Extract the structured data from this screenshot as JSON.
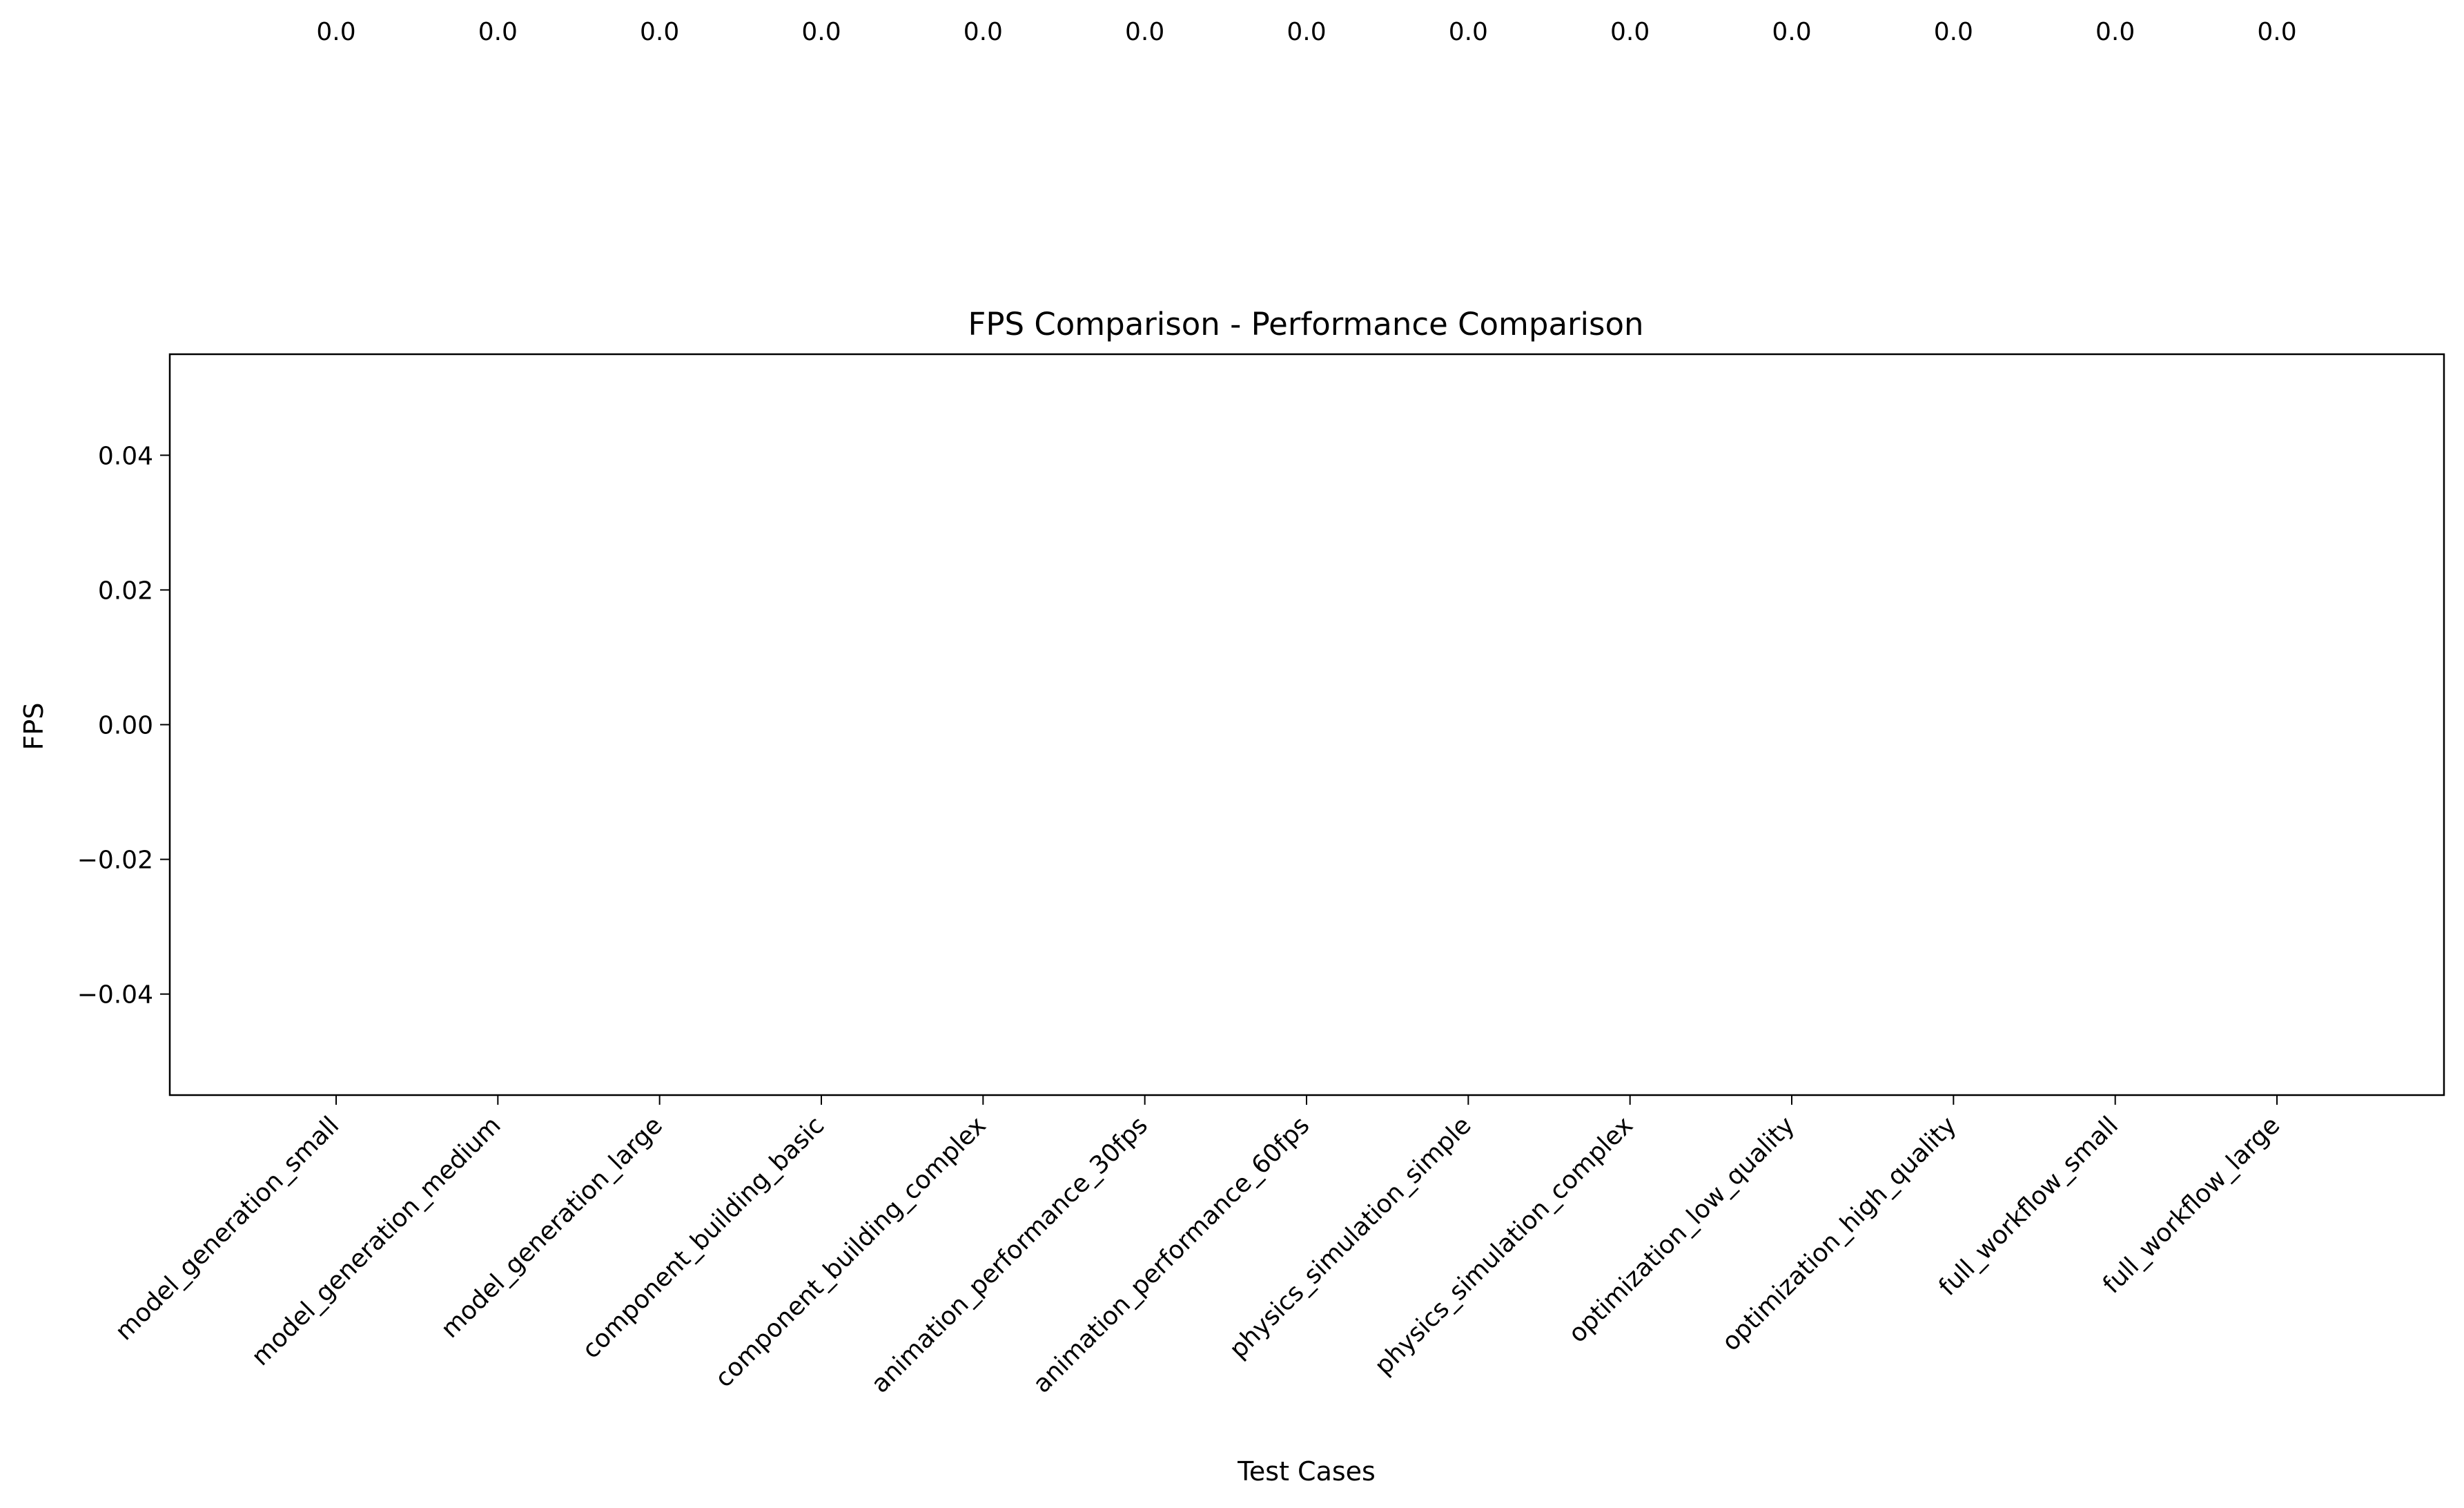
{
  "chart_data": {
    "type": "bar",
    "title": "FPS Comparison - Performance Comparison",
    "xlabel": "Test Cases",
    "ylabel": "FPS",
    "categories": [
      "model_generation_small",
      "model_generation_medium",
      "model_generation_large",
      "component_building_basic",
      "component_building_complex",
      "animation_performance_30fps",
      "animation_performance_60fps",
      "physics_simulation_simple",
      "physics_simulation_complex",
      "optimization_low_quality",
      "optimization_high_quality",
      "full_workflow_small",
      "full_workflow_large"
    ],
    "values": [
      0,
      0,
      0,
      0,
      0,
      0,
      0,
      0,
      0,
      0,
      0,
      0,
      0
    ],
    "data_labels": [
      "0.0",
      "0.0",
      "0.0",
      "0.0",
      "0.0",
      "0.0",
      "0.0",
      "0.0",
      "0.0",
      "0.0",
      "0.0",
      "0.0",
      "0.0"
    ],
    "ylim": [
      -0.055,
      0.055
    ],
    "yticks": [
      -0.04,
      -0.02,
      0.0,
      0.02,
      0.04
    ],
    "ytick_labels": [
      "−0.04",
      "−0.02",
      "0.00",
      "0.02",
      "0.04"
    ],
    "grid": false,
    "legend": "none",
    "bar_color": "#1f77b4"
  }
}
